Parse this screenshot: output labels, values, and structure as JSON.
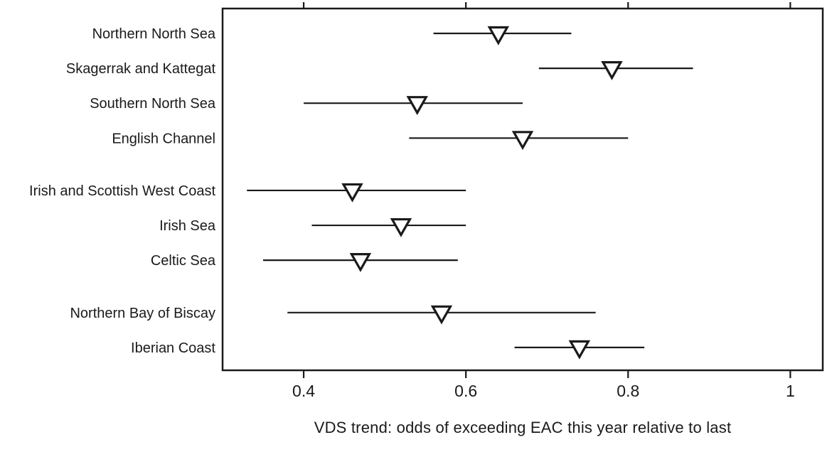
{
  "figure": {
    "background_color": "#ffffff",
    "foreground_color": "#1a1a1a"
  },
  "chart_data": {
    "type": "scatter",
    "subtype": "horizontal-dot-plot-with-error-bars",
    "marker": "open-downward-triangle",
    "title": "",
    "xlabel": "VDS trend: odds of exceeding EAC this year relative to last",
    "ylabel": "",
    "xlim": [
      0.3,
      1.04
    ],
    "xticks": [
      0.4,
      0.6,
      0.8,
      1
    ],
    "xtick_labels": [
      "0.4",
      "0.6",
      "0.8",
      "1"
    ],
    "ticks_on_top_axis": true,
    "grid": false,
    "legend": "none",
    "items": [
      {
        "label": "Northern North Sea",
        "group": 1,
        "estimate": 0.64,
        "ci_low": 0.56,
        "ci_high": 0.73
      },
      {
        "label": "Skagerrak and Kattegat",
        "group": 1,
        "estimate": 0.78,
        "ci_low": 0.69,
        "ci_high": 0.88
      },
      {
        "label": "Southern North Sea",
        "group": 1,
        "estimate": 0.54,
        "ci_low": 0.4,
        "ci_high": 0.67
      },
      {
        "label": "English Channel",
        "group": 1,
        "estimate": 0.67,
        "ci_low": 0.53,
        "ci_high": 0.8
      },
      {
        "label": "Irish and Scottish West Coast",
        "group": 2,
        "estimate": 0.46,
        "ci_low": 0.33,
        "ci_high": 0.6
      },
      {
        "label": "Irish Sea",
        "group": 2,
        "estimate": 0.52,
        "ci_low": 0.41,
        "ci_high": 0.6
      },
      {
        "label": "Celtic Sea",
        "group": 2,
        "estimate": 0.47,
        "ci_low": 0.35,
        "ci_high": 0.59
      },
      {
        "label": "Northern Bay of Biscay",
        "group": 3,
        "estimate": 0.57,
        "ci_low": 0.38,
        "ci_high": 0.76
      },
      {
        "label": "Iberian Coast",
        "group": 3,
        "estimate": 0.74,
        "ci_low": 0.66,
        "ci_high": 0.82
      }
    ]
  }
}
